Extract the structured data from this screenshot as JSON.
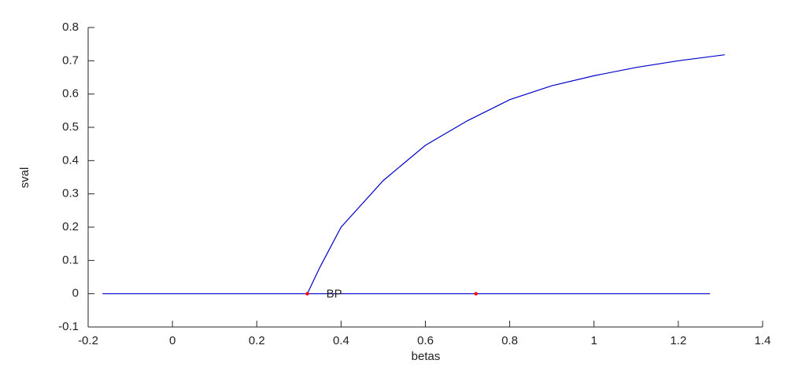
{
  "chart_data": {
    "type": "line",
    "xlabel": "betas",
    "ylabel": "sval",
    "xlim": [
      -0.2,
      1.4
    ],
    "ylim": [
      -0.1,
      0.8
    ],
    "xticks": [
      -0.2,
      0,
      0.2,
      0.4,
      0.6,
      0.8,
      1,
      1.2,
      1.4
    ],
    "yticks": [
      -0.1,
      0,
      0.1,
      0.2,
      0.3,
      0.4,
      0.5,
      0.6,
      0.7,
      0.8
    ],
    "series": [
      {
        "color": "#0000cc",
        "x": [
          -0.166,
          1.275
        ],
        "values": [
          0,
          0
        ]
      },
      {
        "color": "#0000cc",
        "x": [
          0.32,
          0.35,
          0.4,
          0.5,
          0.6,
          0.7,
          0.8,
          0.9,
          1.0,
          1.1,
          1.2,
          1.31
        ],
        "values": [
          0,
          0.08,
          0.2,
          0.34,
          0.446,
          0.52,
          0.583,
          0.625,
          0.655,
          0.68,
          0.7,
          0.718
        ]
      },
      {
        "color": "#ff0000",
        "marker": true,
        "x": [
          0.32,
          0.72
        ],
        "values": [
          0,
          0
        ]
      }
    ],
    "annotations": [
      {
        "text": "BP",
        "x": 0.365,
        "y": 0
      }
    ]
  }
}
